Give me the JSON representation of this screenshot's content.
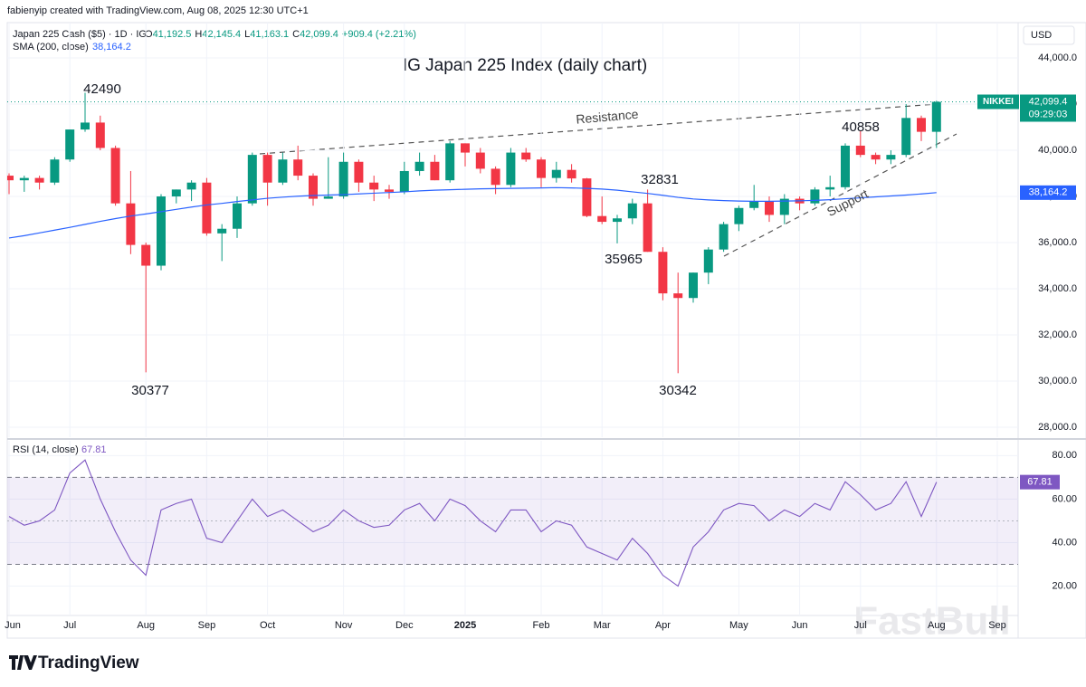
{
  "header": {
    "credit": "fabienyip created with TradingView.com, Aug 08, 2025 12:30 UTC+1",
    "symbol": "Japan 225 Cash ($5) · 1D · IG",
    "ohlc": [
      {
        "key": "O",
        "value": "41,192.5"
      },
      {
        "key": "H",
        "value": "42,145.4"
      },
      {
        "key": "L",
        "value": "41,163.1"
      },
      {
        "key": "C",
        "value": "42,099.4"
      }
    ],
    "change": "+909.4 (+2.21%)",
    "currency": "USD"
  },
  "chart_data": [
    {
      "type": "candlestick",
      "title": "IG Japan 225 Index (daily chart)",
      "categories": [
        "Jun",
        null,
        null,
        null,
        "Jul",
        null,
        null,
        null,
        null,
        "Aug",
        null,
        null,
        null,
        "Sep",
        null,
        null,
        null,
        "Oct",
        null,
        null,
        null,
        null,
        "Nov",
        null,
        null,
        null,
        "Dec",
        null,
        null,
        null,
        "2025",
        null,
        null,
        null,
        null,
        "Feb",
        null,
        null,
        null,
        "Mar",
        null,
        null,
        null,
        "Apr",
        null,
        null,
        null,
        null,
        "May",
        null,
        null,
        null,
        "Jun",
        null,
        null,
        null,
        "Jul",
        null,
        null,
        null,
        null,
        "Aug",
        null,
        null,
        null,
        "Sep"
      ],
      "open": [
        38900,
        38700,
        38800,
        38600,
        39600,
        40900,
        41200,
        40100,
        37700,
        35900,
        35000,
        38000,
        38300,
        38600,
        36400,
        36600,
        37700,
        39800,
        38600,
        39600,
        38900,
        37900,
        38000,
        39500,
        38600,
        38300,
        38200,
        39100,
        39500,
        38700,
        40300,
        39900,
        39200,
        38500,
        39900,
        39600,
        38800,
        39150,
        38780,
        37150,
        36900,
        37050,
        37700,
        35600,
        33800,
        33600,
        34700,
        35700,
        36800,
        37500,
        37800,
        37200,
        37900,
        37700,
        38300,
        38400,
        40200,
        39800,
        39600,
        39800,
        41400,
        40800,
        null,
        null,
        null,
        null
      ],
      "high": [
        39000,
        38900,
        38900,
        39700,
        40900,
        42490,
        41500,
        40200,
        39100,
        36000,
        38100,
        38300,
        38700,
        38800,
        36800,
        38000,
        39900,
        39900,
        39900,
        40200,
        39000,
        39700,
        39900,
        39600,
        38900,
        38500,
        39500,
        39900,
        39800,
        40400,
        40300,
        40100,
        39300,
        40100,
        40100,
        39700,
        39500,
        39400,
        38800,
        38000,
        37200,
        37900,
        38300,
        35800,
        34700,
        34700,
        35800,
        36900,
        37600,
        38500,
        38000,
        38100,
        38000,
        38400,
        38900,
        40300,
        40858,
        39900,
        40000,
        42000,
        41500,
        42145,
        null,
        null,
        null,
        null
      ],
      "low": [
        38100,
        38200,
        38300,
        38500,
        39500,
        40800,
        40000,
        37600,
        35500,
        30377,
        34800,
        37700,
        37800,
        36300,
        35200,
        36200,
        37600,
        37600,
        38500,
        38700,
        37600,
        37900,
        37900,
        38200,
        37800,
        37900,
        38100,
        38900,
        38700,
        38600,
        39300,
        39000,
        38100,
        38400,
        39500,
        38400,
        38600,
        38600,
        37100,
        36800,
        35965,
        36800,
        35600,
        33500,
        30342,
        33400,
        34200,
        35600,
        36500,
        37400,
        36900,
        36800,
        37400,
        37600,
        38000,
        38300,
        39700,
        39400,
        39400,
        39700,
        40400,
        40100,
        null,
        null,
        null,
        null
      ],
      "close": [
        38700,
        38800,
        38600,
        39600,
        40900,
        41200,
        40100,
        37700,
        35900,
        35000,
        38000,
        38300,
        38600,
        36400,
        36600,
        37700,
        39800,
        38600,
        39600,
        38900,
        37900,
        38000,
        39500,
        38600,
        38300,
        38200,
        39100,
        39500,
        38700,
        40300,
        39900,
        39200,
        38500,
        39900,
        39600,
        38800,
        39150,
        38780,
        37150,
        36900,
        37050,
        37700,
        35600,
        33800,
        33600,
        34700,
        35700,
        36800,
        37500,
        37800,
        37200,
        37900,
        37700,
        38300,
        38400,
        40200,
        39800,
        39600,
        39800,
        41400,
        40800,
        42099.4,
        null,
        null,
        null,
        null
      ],
      "up_color": "#089981",
      "down_color": "#f23645",
      "ylim": [
        27570,
        45530
      ],
      "yticks": [
        {
          "value": 28000,
          "label": "28,000.0"
        },
        {
          "value": 30000,
          "label": "30,000.0"
        },
        {
          "value": 32000,
          "label": "32,000.0"
        },
        {
          "value": 34000,
          "label": "34,000.0"
        },
        {
          "value": 36000,
          "label": "36,000.0"
        },
        {
          "value": 38000,
          "label": "38,000.0"
        },
        {
          "value": 40000,
          "label": "40,000.0"
        },
        {
          "value": 42000,
          "label": "42,000.0"
        },
        {
          "value": 44000,
          "label": "44,000.0"
        }
      ],
      "series": [
        {
          "name": "SMA (200, close)",
          "color": "#2962ff",
          "values": [
            36200,
            36300,
            36420,
            36540,
            36660,
            36790,
            36920,
            37040,
            37150,
            37240,
            37340,
            37440,
            37540,
            37630,
            37700,
            37780,
            37850,
            37920,
            37970,
            38010,
            38040,
            38060,
            38080,
            38110,
            38140,
            38170,
            38200,
            38240,
            38270,
            38290,
            38310,
            38330,
            38340,
            38350,
            38360,
            38370,
            38380,
            38370,
            38350,
            38320,
            38270,
            38200,
            38130,
            38050,
            37960,
            37890,
            37850,
            37820,
            37800,
            37790,
            37790,
            37800,
            37810,
            37830,
            37860,
            37900,
            37940,
            37980,
            38020,
            38060,
            38110,
            38164.2,
            null,
            null,
            null,
            null
          ],
          "value_label": "38,164.2"
        }
      ],
      "last_price": 42099.4,
      "last_price_label": "42,099.4",
      "symbol_label": "NIKKEI",
      "countdown": "09:29:03",
      "annotations": [
        "42490",
        "30377",
        "35965",
        "32831",
        "30342",
        "40858",
        "Resistance",
        "Support"
      ]
    },
    {
      "type": "line",
      "series": [
        {
          "name": "RSI (14, close)",
          "color": "#7e57c2",
          "values": [
            52,
            48,
            50,
            55,
            72,
            78,
            60,
            45,
            32,
            25,
            55,
            58,
            60,
            42,
            40,
            50,
            60,
            52,
            55,
            50,
            45,
            48,
            55,
            50,
            47,
            48,
            55,
            58,
            50,
            60,
            57,
            50,
            45,
            55,
            55,
            45,
            50,
            48,
            38,
            35,
            32,
            42,
            35,
            25,
            20,
            38,
            45,
            55,
            58,
            57,
            50,
            55,
            52,
            58,
            55,
            68,
            62,
            55,
            58,
            68,
            52,
            67.81,
            null,
            null,
            null,
            null
          ],
          "value_label": "67.81"
        }
      ],
      "ylim": [
        6.5,
        86.8
      ],
      "yticks": [
        {
          "value": 20,
          "label": "20.00"
        },
        {
          "value": 40,
          "label": "40.00"
        },
        {
          "value": 60,
          "label": "60.00"
        },
        {
          "value": 80,
          "label": "80.00"
        }
      ],
      "bands": [
        30,
        70
      ],
      "midline": 50
    }
  ],
  "footer": {
    "logo": "TradingView",
    "watermark": "FastBull"
  }
}
